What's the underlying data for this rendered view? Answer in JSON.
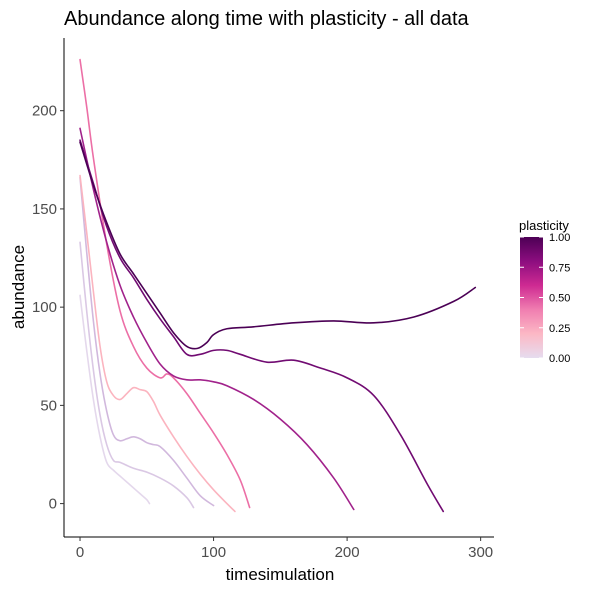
{
  "chart_data": {
    "type": "line",
    "title": "Abundance along time with plasticity - all data",
    "xlabel": "timesimulation",
    "ylabel": "abundance",
    "xlim": [
      -12,
      310
    ],
    "ylim": [
      -17,
      237
    ],
    "xticks": [
      0,
      100,
      200,
      300
    ],
    "yticks": [
      0,
      50,
      100,
      150,
      200
    ],
    "grid": false,
    "legend": {
      "title": "plasticity",
      "placement": "right",
      "ticks": [
        1.0,
        0.75,
        0.5,
        0.25,
        0.0
      ],
      "tick_labels": [
        "1.00",
        "0.75",
        "0.50",
        "0.25",
        "0.00"
      ],
      "gradient_colors": [
        "#e6dcef",
        "#fcb8c5",
        "#f07eb0",
        "#ce2a92",
        "#8c0d7f",
        "#4d0055"
      ]
    },
    "series": [
      {
        "plasticity": 1.0,
        "color": "#4b0055",
        "x": [
          0,
          10,
          20,
          30,
          40,
          50,
          60,
          70,
          80,
          88,
          95,
          100,
          110,
          130,
          160,
          190,
          220,
          250,
          280,
          296
        ],
        "y": [
          184,
          162,
          143,
          127,
          117,
          107,
          97,
          87,
          80,
          79,
          82,
          86,
          89,
          90,
          92,
          93,
          92,
          95,
          103,
          110
        ]
      },
      {
        "plasticity": 0.95,
        "color": "#710b72",
        "x": [
          0,
          10,
          20,
          30,
          40,
          50,
          60,
          70,
          80,
          90,
          100,
          110,
          120,
          140,
          160,
          180,
          200,
          220,
          240,
          260,
          272
        ],
        "y": [
          185,
          163,
          141,
          125,
          115,
          104,
          94,
          85,
          76,
          76,
          78,
          78,
          76,
          72,
          73,
          69,
          64,
          55,
          35,
          10,
          -4
        ]
      },
      {
        "plasticity": 0.8,
        "color": "#a1228b",
        "x": [
          0,
          10,
          20,
          30,
          40,
          50,
          60,
          70,
          80,
          90,
          100,
          110,
          130,
          150,
          170,
          190,
          205
        ],
        "y": [
          191,
          160,
          133,
          111,
          95,
          82,
          71,
          65,
          63,
          63,
          62,
          60,
          53,
          43,
          30,
          13,
          -3
        ]
      },
      {
        "plasticity": 0.55,
        "color": "#ec6fa6",
        "x": [
          0,
          5,
          10,
          20,
          30,
          40,
          50,
          60,
          65,
          70,
          80,
          90,
          100,
          110,
          120,
          127
        ],
        "y": [
          226,
          202,
          176,
          132,
          98,
          80,
          69,
          64,
          66,
          64,
          56,
          46,
          36,
          25,
          12,
          -2
        ]
      },
      {
        "plasticity": 0.3,
        "color": "#fbb4bf",
        "x": [
          0,
          5,
          10,
          15,
          20,
          25,
          30,
          35,
          40,
          45,
          50,
          55,
          60,
          70,
          80,
          90,
          100,
          110,
          116
        ],
        "y": [
          167,
          138,
          108,
          80,
          62,
          55,
          53,
          56,
          59,
          58,
          57,
          52,
          45,
          34,
          24,
          15,
          7,
          0,
          -4
        ]
      },
      {
        "plasticity": 0.2,
        "color": "#d1b8dd",
        "x": [
          0,
          5,
          10,
          15,
          20,
          25,
          30,
          35,
          40,
          45,
          50,
          55,
          60,
          70,
          80,
          90,
          100
        ],
        "y": [
          166,
          128,
          93,
          66,
          47,
          35,
          32,
          33,
          34,
          33,
          31,
          30,
          29,
          22,
          13,
          4,
          -1
        ]
      },
      {
        "plasticity": 0.15,
        "color": "#dac8e4",
        "x": [
          0,
          5,
          10,
          15,
          20,
          25,
          30,
          40,
          50,
          60,
          70,
          80,
          85
        ],
        "y": [
          133,
          98,
          68,
          45,
          30,
          22,
          21,
          18,
          16,
          13,
          9,
          3,
          -2
        ]
      },
      {
        "plasticity": 0.05,
        "color": "#e4d8ec",
        "x": [
          0,
          5,
          10,
          15,
          20,
          25,
          30,
          35,
          40,
          45,
          50,
          52
        ],
        "y": [
          106,
          78,
          53,
          34,
          21,
          17,
          14,
          11,
          8,
          5,
          2,
          0
        ]
      }
    ]
  }
}
